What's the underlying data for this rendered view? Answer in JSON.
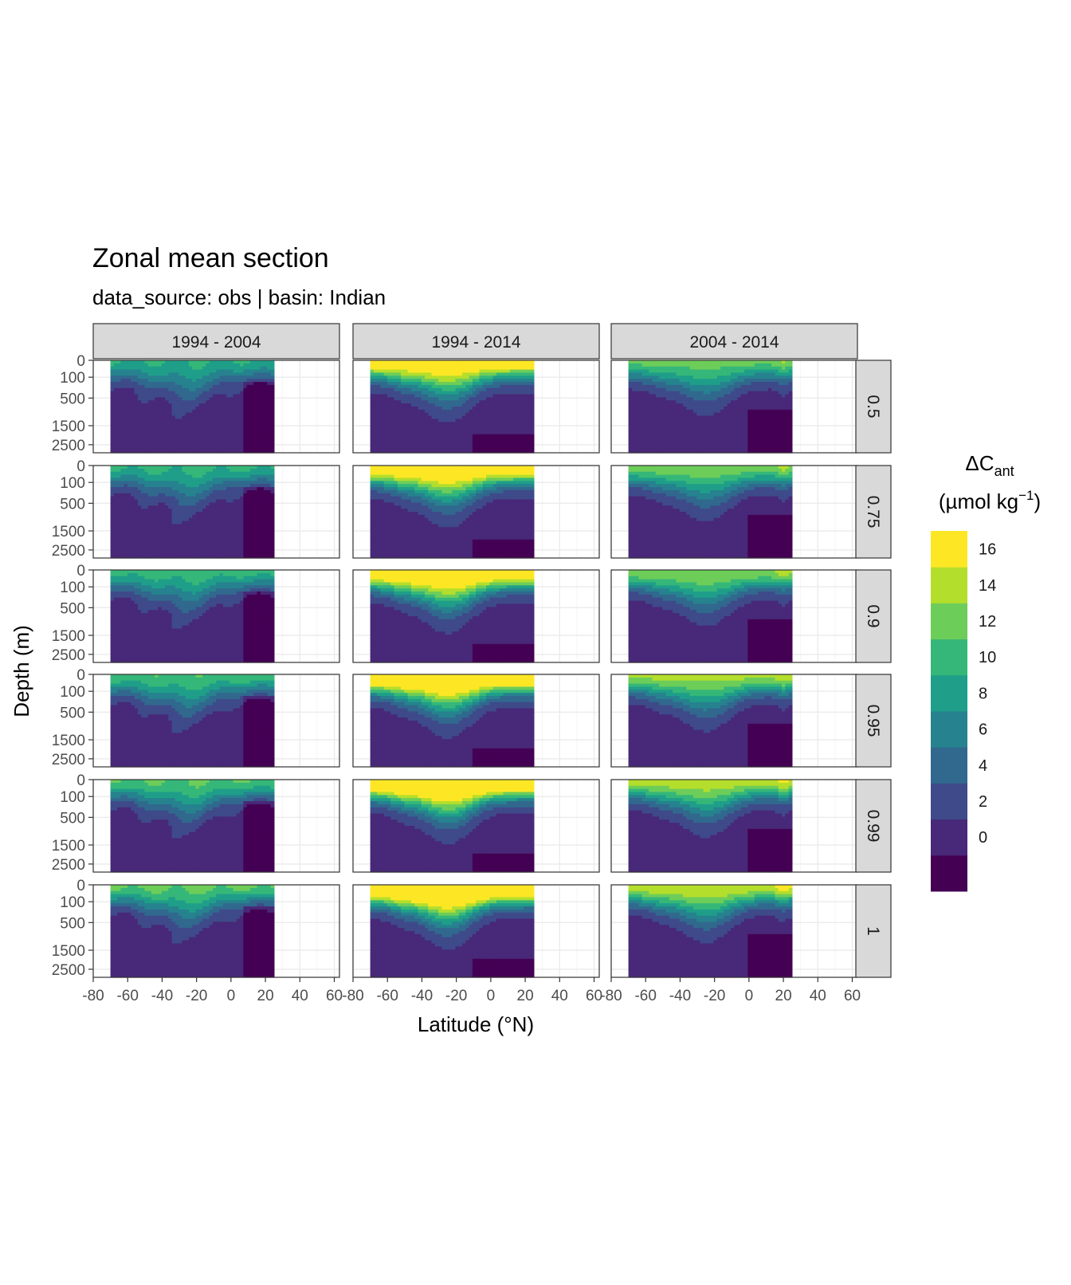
{
  "title": "Zonal mean section",
  "subtitle": "data_source:  obs | basin: Indian",
  "chart_data": {
    "type": "heatmap",
    "facet_cols": [
      "1994 - 2004",
      "1994 - 2014",
      "2004 - 2014"
    ],
    "facet_rows": [
      "0.5",
      "0.75",
      "0.9",
      "0.95",
      "0.99",
      "1"
    ],
    "xlabel": "Latitude (°N)",
    "ylabel": "Depth (m)",
    "x_ticks": [
      -80,
      -60,
      -40,
      -20,
      0,
      20,
      40,
      60
    ],
    "xlim": [
      -80,
      63
    ],
    "y_ticks": [
      0,
      100,
      500,
      1500,
      2500
    ],
    "ylim": [
      0,
      3000
    ],
    "y_scale": "sqrt-reversed",
    "data_lat_range": [
      -70,
      25
    ],
    "legend": {
      "title_main": "ΔC",
      "title_sub": "ant",
      "unit_main": "(µmol kg",
      "unit_sup": "−1",
      "unit_close": ")",
      "labels": [
        "16",
        "14",
        "12",
        "10",
        "8",
        "6",
        "4",
        "2",
        "0"
      ],
      "breaks": [
        -2,
        0,
        2,
        4,
        6,
        8,
        10,
        12,
        14,
        16,
        18
      ],
      "colors": [
        "#440154",
        "#482878",
        "#3E4A89",
        "#31688E",
        "#26828E",
        "#1F9E89",
        "#35B779",
        "#6DCD59",
        "#B4DE2C",
        "#FDE725"
      ],
      "position": "right"
    },
    "grid": true
  }
}
